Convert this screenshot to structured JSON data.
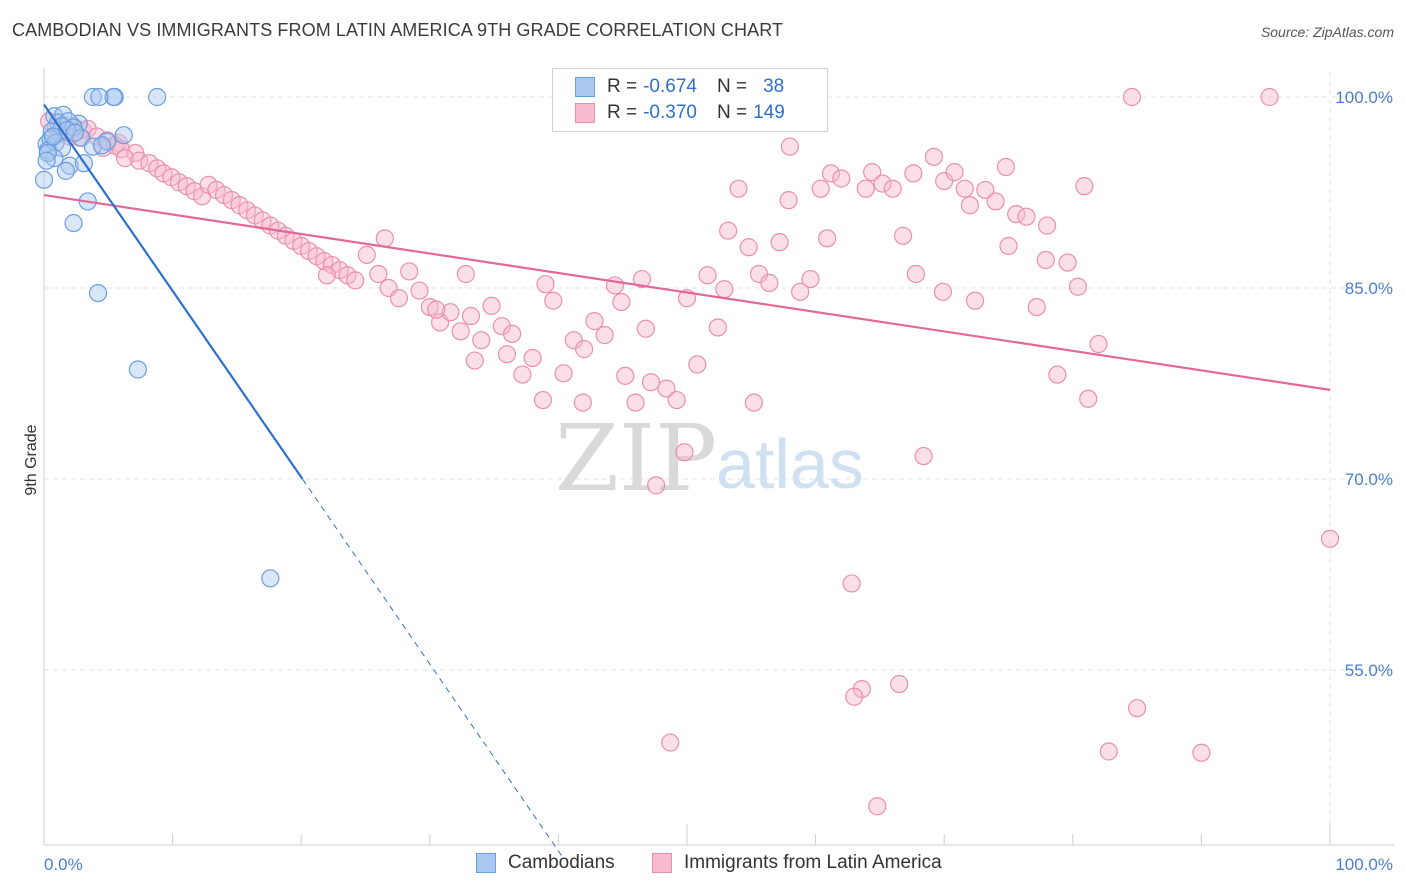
{
  "header": {
    "title": "CAMBODIAN VS IMMIGRANTS FROM LATIN AMERICA 9TH GRADE CORRELATION CHART",
    "source": "Source: ZipAtlas.com"
  },
  "watermark": {
    "zip": "ZIP",
    "atlas": "atlas"
  },
  "stats": {
    "rows": [
      {
        "r_label": "R =",
        "r_value": "-0.674",
        "n_label": "N =",
        "n_value": "38"
      },
      {
        "r_label": "R =",
        "r_value": "-0.370",
        "n_label": "N =",
        "n_value": "149"
      }
    ]
  },
  "legend": {
    "items": [
      "Cambodians",
      "Immigrants from Latin America"
    ]
  },
  "colors": {
    "blue_fill": "#a8c8f0",
    "blue_stroke": "#6a9ee0",
    "blue_line": "#2f6fce",
    "pink_fill": "#f7b9cc",
    "pink_stroke": "#ec8fae",
    "pink_line": "#e4679a",
    "grid": "#e3e3e3",
    "axis_text": "#4a7fd0"
  },
  "chart_data": {
    "type": "scatter",
    "title": "CAMBODIAN VS IMMIGRANTS FROM LATIN AMERICA 9TH GRADE CORRELATION CHART",
    "xlabel": "",
    "ylabel": "9th Grade",
    "xlim": [
      0,
      100
    ],
    "ylim": [
      40,
      101
    ],
    "x_tick_labels": [
      "0.0%",
      "100.0%"
    ],
    "y_ticks": [
      100,
      85,
      70,
      55
    ],
    "y_tick_labels": [
      "100.0%",
      "85.0%",
      "70.0%",
      "55.0%"
    ],
    "grid": true,
    "legend_position": "bottom-center",
    "series": [
      {
        "name": "Cambodians",
        "r": -0.674,
        "n": 38,
        "trend": {
          "x0": 0,
          "y0": 99.4,
          "x1": 20.1,
          "y1": 70.0,
          "dashed_to_x": 40.4,
          "dashed_to_y": 40.2
        },
        "points": [
          [
            5.5,
            100
          ],
          [
            8.8,
            100
          ],
          [
            3.8,
            100
          ],
          [
            5.4,
            100
          ],
          [
            4.3,
            100
          ],
          [
            0.8,
            98.5
          ],
          [
            1.5,
            98.6
          ],
          [
            1.1,
            98.0
          ],
          [
            2.7,
            97.9
          ],
          [
            1.9,
            98.1
          ],
          [
            1.4,
            97.7
          ],
          [
            2.3,
            97.6
          ],
          [
            0.6,
            97.3
          ],
          [
            1.8,
            97.4
          ],
          [
            0.2,
            96.3
          ],
          [
            0.5,
            96.7
          ],
          [
            0.9,
            96.4
          ],
          [
            1.4,
            96.0
          ],
          [
            0.3,
            95.8
          ],
          [
            0.7,
            96.9
          ],
          [
            2.9,
            96.8
          ],
          [
            3.8,
            96.1
          ],
          [
            0.8,
            95.2
          ],
          [
            0.3,
            95.6
          ],
          [
            0.2,
            95.0
          ],
          [
            2.0,
            94.6
          ],
          [
            1.7,
            94.2
          ],
          [
            3.1,
            94.8
          ],
          [
            4.9,
            96.5
          ],
          [
            4.5,
            96.2
          ],
          [
            2.4,
            97.2
          ],
          [
            3.4,
            91.8
          ],
          [
            2.3,
            90.1
          ],
          [
            4.2,
            84.6
          ],
          [
            7.3,
            78.6
          ],
          [
            17.6,
            62.2
          ],
          [
            0.0,
            93.5
          ],
          [
            6.2,
            97.0
          ]
        ]
      },
      {
        "name": "Immigrants from Latin America",
        "r": -0.37,
        "n": 149,
        "trend": {
          "x0": 0,
          "y0": 92.3,
          "x1": 100,
          "y1": 77.0
        },
        "points": [
          [
            84.6,
            100
          ],
          [
            95.3,
            100
          ],
          [
            0.4,
            98.1
          ],
          [
            0.9,
            97.6
          ],
          [
            1.5,
            97.8
          ],
          [
            2.3,
            97.7
          ],
          [
            3.0,
            97.4
          ],
          [
            3.4,
            97.5
          ],
          [
            1.2,
            97.1
          ],
          [
            2.0,
            96.9
          ],
          [
            2.8,
            96.8
          ],
          [
            4.1,
            96.9
          ],
          [
            4.9,
            96.6
          ],
          [
            5.8,
            96.4
          ],
          [
            4.6,
            96.0
          ],
          [
            5.5,
            96.2
          ],
          [
            6.0,
            95.9
          ],
          [
            7.1,
            95.6
          ],
          [
            6.3,
            95.2
          ],
          [
            7.4,
            95.0
          ],
          [
            8.2,
            94.8
          ],
          [
            8.8,
            94.4
          ],
          [
            9.3,
            94.0
          ],
          [
            9.9,
            93.7
          ],
          [
            10.5,
            93.3
          ],
          [
            11.1,
            93.0
          ],
          [
            11.7,
            92.6
          ],
          [
            12.3,
            92.2
          ],
          [
            12.8,
            93.1
          ],
          [
            13.4,
            92.7
          ],
          [
            14.0,
            92.3
          ],
          [
            14.6,
            91.9
          ],
          [
            15.2,
            91.5
          ],
          [
            15.8,
            91.1
          ],
          [
            16.4,
            90.7
          ],
          [
            17.0,
            90.3
          ],
          [
            17.6,
            89.9
          ],
          [
            18.2,
            89.5
          ],
          [
            18.8,
            89.1
          ],
          [
            19.4,
            88.7
          ],
          [
            20.0,
            88.3
          ],
          [
            20.6,
            87.9
          ],
          [
            21.2,
            87.5
          ],
          [
            21.8,
            87.1
          ],
          [
            22.4,
            86.8
          ],
          [
            23.0,
            86.4
          ],
          [
            23.6,
            86.0
          ],
          [
            24.2,
            85.6
          ],
          [
            25.1,
            87.6
          ],
          [
            26.0,
            86.1
          ],
          [
            26.8,
            85.0
          ],
          [
            27.6,
            84.2
          ],
          [
            28.4,
            86.3
          ],
          [
            29.2,
            84.8
          ],
          [
            30.0,
            83.5
          ],
          [
            30.8,
            82.3
          ],
          [
            31.6,
            83.1
          ],
          [
            32.4,
            81.6
          ],
          [
            33.2,
            82.8
          ],
          [
            34.0,
            80.9
          ],
          [
            34.8,
            83.6
          ],
          [
            35.6,
            82.0
          ],
          [
            36.4,
            81.4
          ],
          [
            37.2,
            78.2
          ],
          [
            38.0,
            79.5
          ],
          [
            38.8,
            76.2
          ],
          [
            39.6,
            84.0
          ],
          [
            40.4,
            78.3
          ],
          [
            41.2,
            80.9
          ],
          [
            42.0,
            80.2
          ],
          [
            42.8,
            82.4
          ],
          [
            43.6,
            81.3
          ],
          [
            44.4,
            85.2
          ],
          [
            45.2,
            78.1
          ],
          [
            46.0,
            76.0
          ],
          [
            46.8,
            81.8
          ],
          [
            47.6,
            69.5
          ],
          [
            48.4,
            77.1
          ],
          [
            49.2,
            76.2
          ],
          [
            50.0,
            84.2
          ],
          [
            50.8,
            79.0
          ],
          [
            51.6,
            86.0
          ],
          [
            52.4,
            81.9
          ],
          [
            53.2,
            89.5
          ],
          [
            54.0,
            92.8
          ],
          [
            54.8,
            88.2
          ],
          [
            55.6,
            86.1
          ],
          [
            56.4,
            85.4
          ],
          [
            57.2,
            88.6
          ],
          [
            58.0,
            96.1
          ],
          [
            58.8,
            84.7
          ],
          [
            59.6,
            85.7
          ],
          [
            60.4,
            92.8
          ],
          [
            61.2,
            94.0
          ],
          [
            62.0,
            93.6
          ],
          [
            62.8,
            61.8
          ],
          [
            63.6,
            53.5
          ],
          [
            64.4,
            94.1
          ],
          [
            65.2,
            93.2
          ],
          [
            66.0,
            92.8
          ],
          [
            66.8,
            89.1
          ],
          [
            67.6,
            94.0
          ],
          [
            68.4,
            71.8
          ],
          [
            69.2,
            95.3
          ],
          [
            70.0,
            93.4
          ],
          [
            70.8,
            94.1
          ],
          [
            71.6,
            92.8
          ],
          [
            72.4,
            84.0
          ],
          [
            73.2,
            92.7
          ],
          [
            74.0,
            91.8
          ],
          [
            74.8,
            94.5
          ],
          [
            75.6,
            90.8
          ],
          [
            76.4,
            90.6
          ],
          [
            77.2,
            83.5
          ],
          [
            78.0,
            89.9
          ],
          [
            78.8,
            78.2
          ],
          [
            79.6,
            87.0
          ],
          [
            80.4,
            85.1
          ],
          [
            81.2,
            76.3
          ],
          [
            82.0,
            80.6
          ],
          [
            82.8,
            48.6
          ],
          [
            85.0,
            52.0
          ],
          [
            30.5,
            83.3
          ],
          [
            32.8,
            86.1
          ],
          [
            36.0,
            79.8
          ],
          [
            39.0,
            85.3
          ],
          [
            41.9,
            76.0
          ],
          [
            44.9,
            83.9
          ],
          [
            47.2,
            77.6
          ],
          [
            49.8,
            72.1
          ],
          [
            52.9,
            84.9
          ],
          [
            55.2,
            76.0
          ],
          [
            57.9,
            91.9
          ],
          [
            60.9,
            88.9
          ],
          [
            63.9,
            92.8
          ],
          [
            66.5,
            53.9
          ],
          [
            67.8,
            86.1
          ],
          [
            69.9,
            84.7
          ],
          [
            72.0,
            91.5
          ],
          [
            75.0,
            88.3
          ],
          [
            77.9,
            87.2
          ],
          [
            80.9,
            93.0
          ],
          [
            48.7,
            49.3
          ],
          [
            63.0,
            52.9
          ],
          [
            64.8,
            44.3
          ],
          [
            90.0,
            48.5
          ],
          [
            100.0,
            65.3
          ],
          [
            22.0,
            86.0
          ],
          [
            26.5,
            88.9
          ],
          [
            33.5,
            79.3
          ],
          [
            46.5,
            85.7
          ]
        ]
      }
    ]
  }
}
